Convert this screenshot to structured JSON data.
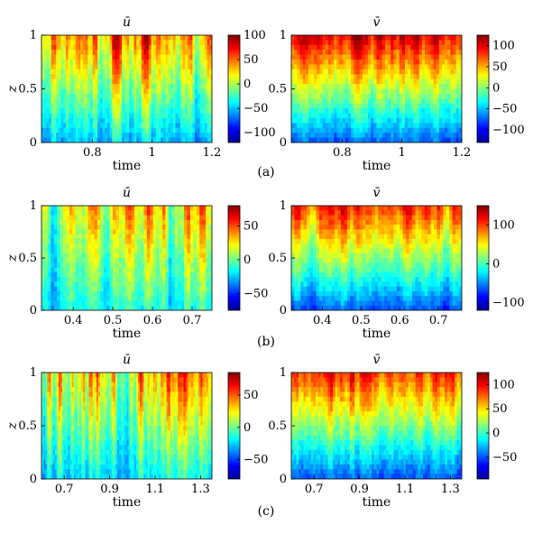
{
  "chart_data": [
    {
      "type": "heatmap",
      "row": "(a)",
      "title": "ū",
      "xlabel": "time",
      "ylabel": "z",
      "xlim": [
        0.63,
        1.2
      ],
      "ylim": [
        0,
        1
      ],
      "xticks": [
        "0.8",
        "1",
        "1.2"
      ],
      "xtick_values": [
        0.8,
        1.0,
        1.2
      ],
      "yticks": [
        "0",
        "0.5",
        "1"
      ],
      "clim": [
        -120,
        100
      ],
      "colorbar_ticks": [
        "100",
        "50",
        "0",
        "−50",
        "−100"
      ],
      "colorbar_values": [
        100,
        50,
        0,
        -50,
        -100
      ],
      "pattern": "vertical streaks; red/positive near top, blue/negative near bottom"
    },
    {
      "type": "heatmap",
      "row": "(a)",
      "title": "v̄",
      "xlabel": "time",
      "ylabel": "",
      "xlim": [
        0.63,
        1.2
      ],
      "ylim": [
        0,
        1
      ],
      "xticks": [
        "0.8",
        "1",
        "1.2"
      ],
      "xtick_values": [
        0.8,
        1.0,
        1.2
      ],
      "yticks": [
        "0",
        "0.5",
        "1"
      ],
      "clim": [
        -130,
        125
      ],
      "colorbar_ticks": [
        "100",
        "50",
        "0",
        "−50",
        "−100"
      ],
      "colorbar_values": [
        100,
        50,
        0,
        -50,
        -100
      ],
      "pattern": "strong positive (red) upper half, negative (blue) lower half"
    },
    {
      "type": "heatmap",
      "row": "(b)",
      "title": "ū",
      "xlabel": "time",
      "ylabel": "z",
      "xlim": [
        0.32,
        0.75
      ],
      "ylim": [
        0,
        1
      ],
      "xticks": [
        "0.4",
        "0.5",
        "0.6",
        "0.7"
      ],
      "xtick_values": [
        0.4,
        0.5,
        0.6,
        0.7
      ],
      "yticks": [
        "0",
        "0.5",
        "1"
      ],
      "clim": [
        -75,
        80
      ],
      "colorbar_ticks": [
        "50",
        "0",
        "−50"
      ],
      "colorbar_values": [
        50,
        0,
        -50
      ],
      "pattern": "vertical streaks with mixed signs"
    },
    {
      "type": "heatmap",
      "row": "(b)",
      "title": "v̄",
      "xlabel": "time",
      "ylabel": "",
      "xlim": [
        0.32,
        0.76
      ],
      "ylim": [
        0,
        1
      ],
      "xticks": [
        "0.4",
        "0.5",
        "0.6",
        "0.7"
      ],
      "xtick_values": [
        0.4,
        0.5,
        0.6,
        0.7
      ],
      "yticks": [
        "0",
        "0.5",
        "1"
      ],
      "clim": [
        -120,
        150
      ],
      "colorbar_ticks": [
        "100",
        "0",
        "−100"
      ],
      "colorbar_values": [
        100,
        0,
        -100
      ],
      "pattern": "positive upper, negative (blue) lower third"
    },
    {
      "type": "heatmap",
      "row": "(c)",
      "title": "ū",
      "xlabel": "time",
      "ylabel": "z",
      "xlim": [
        0.6,
        1.35
      ],
      "ylim": [
        0,
        1
      ],
      "xticks": [
        "0.7",
        "0.9",
        "1.1",
        "1.3"
      ],
      "xtick_values": [
        0.7,
        0.9,
        1.1,
        1.3
      ],
      "yticks": [
        "0",
        "0.5",
        "1"
      ],
      "clim": [
        -80,
        85
      ],
      "colorbar_ticks": [
        "50",
        "0",
        "−50"
      ],
      "colorbar_values": [
        50,
        0,
        -50
      ],
      "pattern": "dense thin vertical streaks near top, weak near bottom"
    },
    {
      "type": "heatmap",
      "row": "(c)",
      "title": "v̄",
      "xlabel": "time",
      "ylabel": "",
      "xlim": [
        0.6,
        1.35
      ],
      "ylim": [
        0,
        1
      ],
      "xticks": [
        "0.7",
        "0.9",
        "1.1",
        "1.3"
      ],
      "xtick_values": [
        0.7,
        0.9,
        1.1,
        1.3
      ],
      "yticks": [
        "0",
        "0.5",
        "1"
      ],
      "clim": [
        -95,
        125
      ],
      "colorbar_ticks": [
        "100",
        "50",
        "0",
        "−50"
      ],
      "colorbar_values": [
        100,
        50,
        0,
        -50
      ],
      "pattern": "positive (red) upper half, negative (blue) near bottom"
    }
  ],
  "colormap": "jet"
}
